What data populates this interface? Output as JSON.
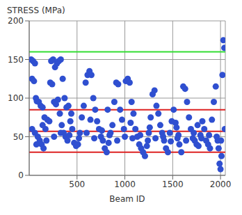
{
  "chart_data": {
    "type": "scatter",
    "y_label": "STRESS (MPa)",
    "x_label": "Beam ID",
    "xlim": [
      0,
      2050
    ],
    "xticks": [
      500,
      1000,
      1500,
      2000
    ],
    "ylim": [
      0,
      200
    ],
    "yticks": [
      0,
      50,
      100,
      150,
      200
    ],
    "grid": true,
    "color": "#2f4fd0",
    "marker": "circle",
    "x": [
      20,
      40,
      60,
      30,
      50,
      70,
      80,
      100,
      120,
      140,
      160,
      30,
      60,
      90,
      110,
      130,
      150,
      170,
      190,
      210,
      230,
      250,
      270,
      290,
      220,
      240,
      260,
      280,
      300,
      320,
      340,
      360,
      380,
      400,
      310,
      330,
      350,
      370,
      390,
      410,
      430,
      450,
      470,
      490,
      510,
      530,
      550,
      570,
      590,
      610,
      630,
      650,
      670,
      690,
      710,
      730,
      750,
      770,
      790,
      810,
      830,
      850,
      870,
      890,
      910,
      930,
      950,
      970,
      990,
      1010,
      1030,
      1050,
      1070,
      1090,
      1110,
      1130,
      1150,
      1170,
      1190,
      1210,
      1230,
      1250,
      1270,
      1290,
      1310,
      1330,
      1350,
      1370,
      1390,
      1410,
      1430,
      1450,
      1470,
      1490,
      1510,
      1530,
      1550,
      1570,
      1590,
      1610,
      1630,
      1650,
      1670,
      1690,
      1710,
      1730,
      1750,
      1770,
      1790,
      1810,
      1830,
      1850,
      1870,
      1890,
      1910,
      1930,
      1950,
      1970,
      1990,
      2000,
      2010,
      2020,
      2030,
      2040,
      2045,
      2005,
      1980,
      75,
      180,
      260,
      330,
      420,
      520,
      600,
      680,
      760,
      840,
      920,
      1000,
      1080,
      1160,
      1240,
      1320,
      1400,
      1480,
      1560,
      1640,
      1720,
      1800,
      1880,
      1960,
      140,
      440,
      640,
      820,
      1060,
      1260,
      1540,
      1760
    ],
    "values": [
      150,
      148,
      145,
      125,
      122,
      100,
      96,
      95,
      90,
      88,
      75,
      60,
      55,
      50,
      45,
      40,
      35,
      60,
      72,
      70,
      148,
      150,
      140,
      145,
      120,
      118,
      95,
      92,
      98,
      80,
      65,
      55,
      50,
      45,
      148,
      150,
      125,
      100,
      88,
      90,
      70,
      60,
      42,
      38,
      40,
      55,
      75,
      90,
      120,
      130,
      135,
      130,
      100,
      85,
      70,
      60,
      50,
      45,
      35,
      30,
      42,
      55,
      65,
      95,
      120,
      118,
      85,
      72,
      60,
      122,
      125,
      120,
      95,
      80,
      60,
      50,
      40,
      35,
      30,
      25,
      38,
      55,
      75,
      105,
      110,
      90,
      80,
      65,
      55,
      45,
      35,
      30,
      55,
      70,
      85,
      68,
      48,
      40,
      30,
      115,
      112,
      95,
      75,
      60,
      48,
      45,
      40,
      38,
      52,
      70,
      60,
      45,
      40,
      35,
      72,
      95,
      115,
      45,
      15,
      8,
      25,
      130,
      175,
      165,
      60,
      45,
      35,
      40,
      45,
      50,
      55,
      52,
      48,
      55,
      48,
      58,
      52,
      45,
      50,
      48,
      52,
      45,
      48,
      50,
      44,
      52,
      45,
      55,
      48,
      52,
      50,
      65,
      80,
      72,
      85,
      68,
      62,
      62,
      65
    ],
    "hlines": [
      {
        "value": 160,
        "color": "#33dd33"
      },
      {
        "value": 85,
        "color": "#dd2222"
      },
      {
        "value": 57,
        "color": "#dd2222"
      },
      {
        "value": 30,
        "color": "#dd2222"
      }
    ]
  }
}
